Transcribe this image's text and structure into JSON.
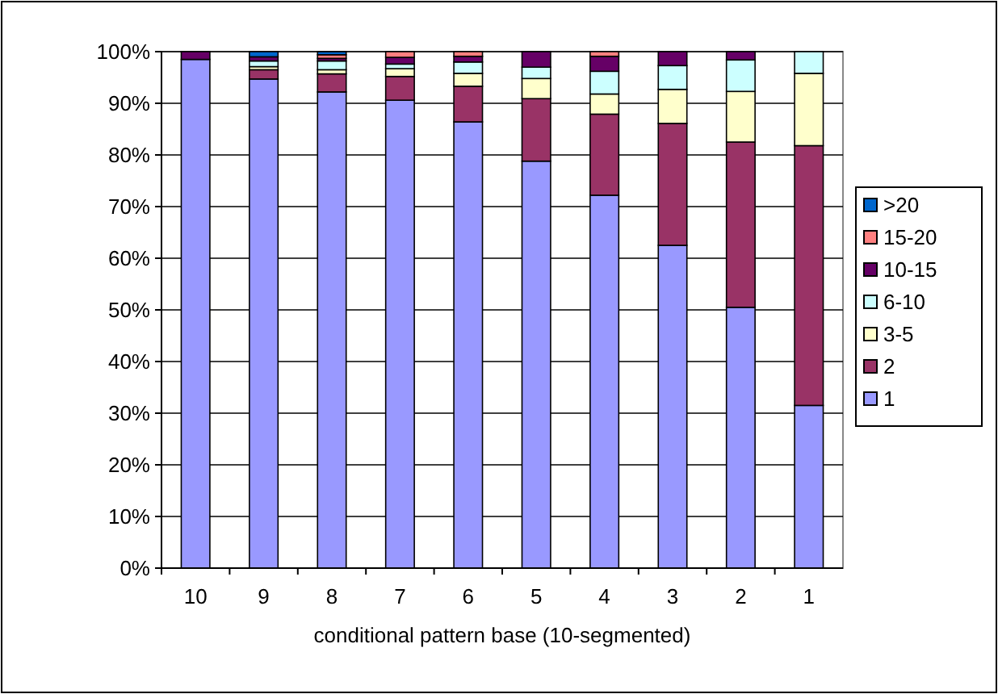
{
  "chart_data": {
    "type": "bar",
    "stacked": true,
    "xlabel": "conditional pattern base (10-segmented)",
    "categories": [
      "10",
      "9",
      "8",
      "7",
      "6",
      "5",
      "4",
      "3",
      "2",
      "1"
    ],
    "series": [
      {
        "name": "1",
        "color": "#9999ff",
        "values": [
          98.5,
          94.7,
          92.2,
          90.6,
          86.4,
          78.8,
          72.2,
          62.5,
          50.5,
          31.5
        ]
      },
      {
        "name": "2",
        "color": "#993366",
        "values": [
          0,
          1.8,
          3.5,
          4.6,
          6.9,
          12.1,
          15.7,
          23.6,
          32,
          50.3
        ]
      },
      {
        "name": "3-5",
        "color": "#ffffcc",
        "values": [
          0,
          0.6,
          0.8,
          1.5,
          2.5,
          3.9,
          3.9,
          6.6,
          9.8,
          14
        ]
      },
      {
        "name": "6-10",
        "color": "#ccffff",
        "values": [
          0,
          1.1,
          1.7,
          0.9,
          2.2,
          2.2,
          4.4,
          4.6,
          6.1,
          4.2
        ]
      },
      {
        "name": "10-15",
        "color": "#660066",
        "values": [
          1.5,
          0.8,
          0.5,
          1.3,
          1.1,
          3,
          2.9,
          2.7,
          1.6,
          0
        ]
      },
      {
        "name": "15-20",
        "color": "#ff8080",
        "values": [
          0,
          0,
          0.7,
          1.1,
          0.9,
          0,
          0.9,
          0,
          0,
          0
        ]
      },
      {
        "name": ">20",
        "color": "#0066cc",
        "values": [
          0,
          1,
          0.6,
          0,
          0,
          0,
          0,
          0,
          0,
          0
        ]
      }
    ],
    "ylim": [
      0,
      100
    ],
    "yticks": [
      {
        "value": 0,
        "label": "0%"
      },
      {
        "value": 10,
        "label": "10%"
      },
      {
        "value": 20,
        "label": "20%"
      },
      {
        "value": 30,
        "label": "30%"
      },
      {
        "value": 40,
        "label": "40%"
      },
      {
        "value": 50,
        "label": "50%"
      },
      {
        "value": 60,
        "label": "60%"
      },
      {
        "value": 70,
        "label": "70%"
      },
      {
        "value": 80,
        "label": "80%"
      },
      {
        "value": 90,
        "label": "90%"
      },
      {
        "value": 100,
        "label": "100%"
      }
    ],
    "grid": "y",
    "legend": "right"
  }
}
